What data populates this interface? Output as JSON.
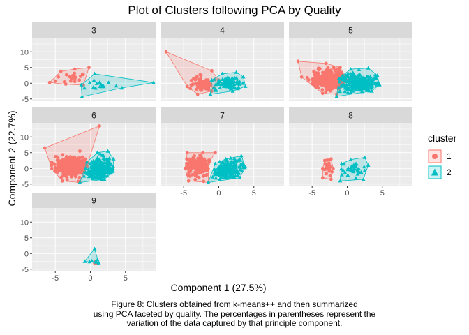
{
  "title": "Plot of Clusters following PCA by Quality",
  "xlabel": "Component 1 (27.5%)",
  "ylabel": "Component 2 (22.7%)",
  "caption": [
    "Figure 8: Clusters obtained from k-means++ and then summarized",
    "using PCA faceted by quality. The percentages in parentheses represent the",
    "variation of the data captured by that principle component."
  ],
  "legend": {
    "title": "cluster",
    "items": [
      {
        "label": "1",
        "color": "#F8766D",
        "shape": "circle"
      },
      {
        "label": "2",
        "color": "#00BFC4",
        "shape": "triangle"
      }
    ]
  },
  "chart_data": {
    "type": "scatter",
    "facet_by": "quality",
    "xlim": [
      -8.3,
      9.3
    ],
    "ylim": [
      -5.5,
      14.5
    ],
    "xticks": [
      -5,
      0,
      5
    ],
    "yticks": [
      -5,
      0,
      5,
      10
    ],
    "panel_background": "#EBEBEB",
    "strip_background": "#D9D9D9",
    "facets": [
      {
        "label": "3",
        "clusters": [
          {
            "cluster": "1",
            "hull": [
              [
                -5.8,
                0.2
              ],
              [
                -4.2,
                3.8
              ],
              [
                -2.2,
                4.5
              ],
              [
                -0.2,
                5.0
              ],
              [
                -1.0,
                -0.6
              ],
              [
                -3.5,
                -0.3
              ]
            ],
            "center": [
              -2.6,
              1.8
            ],
            "spread": [
              1.1,
              1.2
            ],
            "n": 18
          },
          {
            "cluster": "2",
            "hull": [
              [
                -1.2,
                -4.3
              ],
              [
                -1.3,
                -0.5
              ],
              [
                0.6,
                3.0
              ],
              [
                9.0,
                0.2
              ],
              [
                4.5,
                -1.5
              ]
            ],
            "center": [
              1.8,
              -0.6
            ],
            "spread": [
              1.0,
              1.0
            ],
            "n": 16
          }
        ]
      },
      {
        "label": "4",
        "clusters": [
          {
            "cluster": "1",
            "hull": [
              [
                -7.5,
                10.0
              ],
              [
                -1.0,
                4.0
              ],
              [
                0.0,
                1.0
              ],
              [
                -1.0,
                -2.5
              ],
              [
                -3.0,
                -3.5
              ],
              [
                -4.5,
                -1.0
              ]
            ],
            "center": [
              -2.3,
              0.0
            ],
            "spread": [
              1.0,
              1.2
            ],
            "n": 70
          },
          {
            "cluster": "2",
            "hull": [
              [
                -1.2,
                -3.5
              ],
              [
                -1.0,
                1.0
              ],
              [
                0.5,
                3.0
              ],
              [
                2.5,
                3.5
              ],
              [
                3.5,
                2.0
              ],
              [
                3.8,
                -1.0
              ],
              [
                2.0,
                -2.5
              ]
            ],
            "center": [
              1.5,
              -0.2
            ],
            "spread": [
              1.0,
              1.1
            ],
            "n": 80
          }
        ]
      },
      {
        "label": "5",
        "clusters": [
          {
            "cluster": "1",
            "hull": [
              [
                -7.0,
                7.0
              ],
              [
                -3.0,
                6.3
              ],
              [
                -1.0,
                5.0
              ],
              [
                0.0,
                1.0
              ],
              [
                -1.5,
                -3.5
              ],
              [
                -3.5,
                -3.2
              ],
              [
                -6.5,
                2.0
              ]
            ],
            "center": [
              -2.6,
              1.0
            ],
            "spread": [
              1.3,
              1.6
            ],
            "n": 300
          },
          {
            "cluster": "2",
            "hull": [
              [
                -1.5,
                -4.2
              ],
              [
                -1.2,
                1.5
              ],
              [
                0.5,
                4.5
              ],
              [
                3.0,
                4.8
              ],
              [
                4.3,
                2.5
              ],
              [
                4.6,
                -0.5
              ],
              [
                3.5,
                -2.5
              ]
            ],
            "center": [
              1.6,
              0.2
            ],
            "spread": [
              1.3,
              1.4
            ],
            "n": 300
          }
        ]
      },
      {
        "label": "6",
        "clusters": [
          {
            "cluster": "1",
            "hull": [
              [
                -6.5,
                6.5
              ],
              [
                1.3,
                13.5
              ],
              [
                -0.5,
                0.5
              ],
              [
                -1.5,
                -4.5
              ],
              [
                -4.0,
                -4.0
              ],
              [
                -5.5,
                0.0
              ]
            ],
            "center": [
              -2.7,
              0.5
            ],
            "spread": [
              1.3,
              1.6
            ],
            "n": 300
          },
          {
            "cluster": "2",
            "hull": [
              [
                -1.5,
                -4.5
              ],
              [
                -0.5,
                2.0
              ],
              [
                1.0,
                5.0
              ],
              [
                2.5,
                5.5
              ],
              [
                3.3,
                3.0
              ],
              [
                3.2,
                -1.0
              ],
              [
                2.0,
                -3.5
              ]
            ],
            "center": [
              1.6,
              0.0
            ],
            "spread": [
              1.2,
              1.4
            ],
            "n": 300
          }
        ]
      },
      {
        "label": "7",
        "clusters": [
          {
            "cluster": "1",
            "hull": [
              [
                -4.5,
                5.0
              ],
              [
                -0.5,
                5.0
              ],
              [
                -1.5,
                1.5
              ],
              [
                -1.5,
                -4.5
              ],
              [
                -4.3,
                -4.0
              ],
              [
                -4.8,
                0.0
              ]
            ],
            "center": [
              -2.8,
              0.6
            ],
            "spread": [
              1.0,
              1.5
            ],
            "n": 180
          },
          {
            "cluster": "2",
            "hull": [
              [
                -1.5,
                -4.5
              ],
              [
                -0.5,
                1.5
              ],
              [
                1.0,
                3.0
              ],
              [
                3.2,
                4.0
              ],
              [
                3.8,
                0.5
              ],
              [
                3.0,
                -3.0
              ]
            ],
            "center": [
              1.3,
              -0.3
            ],
            "spread": [
              1.2,
              1.3
            ],
            "n": 180
          }
        ]
      },
      {
        "label": "8",
        "clusters": [
          {
            "cluster": "1",
            "hull": [
              [
                -3.2,
                2.5
              ],
              [
                -2.3,
                3.0
              ],
              [
                -2.0,
                0.0
              ],
              [
                -2.3,
                -3.5
              ],
              [
                -3.5,
                -3.0
              ],
              [
                -3.5,
                0.0
              ]
            ],
            "center": [
              -2.7,
              0.2
            ],
            "spread": [
              0.5,
              1.2
            ],
            "n": 25
          },
          {
            "cluster": "2",
            "hull": [
              [
                -1.0,
                -4.0
              ],
              [
                -0.8,
                1.5
              ],
              [
                0.5,
                2.8
              ],
              [
                2.5,
                3.5
              ],
              [
                3.0,
                1.0
              ],
              [
                2.3,
                -3.5
              ]
            ],
            "center": [
              1.0,
              -0.2
            ],
            "spread": [
              0.9,
              1.0
            ],
            "n": 30
          }
        ]
      },
      {
        "label": "9",
        "clusters": [
          {
            "cluster": "1",
            "hull": [
              [
                0.6,
                -3.0
              ],
              [
                0.7,
                -2.5
              ],
              [
                0.9,
                -3.0
              ]
            ],
            "center": [
              0.7,
              -2.8
            ],
            "spread": [
              0.1,
              0.1
            ],
            "n": 1
          },
          {
            "cluster": "2",
            "hull": [
              [
                -0.8,
                -2.5
              ],
              [
                0.6,
                1.5
              ],
              [
                1.2,
                -3.0
              ]
            ],
            "center": [
              0.5,
              -1.8
            ],
            "spread": [
              0.4,
              0.9
            ],
            "n": 5
          }
        ]
      }
    ]
  }
}
